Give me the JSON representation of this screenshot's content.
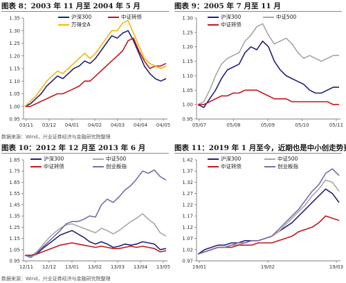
{
  "source_top": "数据来源：Wind，兴业证券经济与金融研究院整理",
  "source_bottom": "数据来源：Wind，兴业证券经济与金融研究院整理",
  "panels": [
    {
      "title": "图表 8：2003 年 11 月至 2004 年 5 月"
    },
    {
      "title": "图表 9：2005 年 7 月至 11 月"
    },
    {
      "title": "图表 10：2012 年 12 月至 2013 年 6 月"
    },
    {
      "title": "图表 11：2019 年 1 月至今，近期也是中小创走势更强"
    }
  ],
  "chart_data": [
    {
      "type": "line",
      "title": "图表 8：2003 年 11 月至 2004 年 5 月",
      "x_ticks": [
        "03/11",
        "03/12",
        "04/01",
        "04/02",
        "04/03",
        "04/04",
        "04/05"
      ],
      "ylim": [
        0.95,
        1.35
      ],
      "y_ticks": [
        "0.95",
        "1.00",
        "1.05",
        "1.10",
        "1.15",
        "1.20",
        "1.25",
        "1.30",
        "1.35"
      ],
      "legend_position": "top",
      "series": [
        {
          "name": "沪深300",
          "color": "#1f1f7a",
          "values": [
            1.0,
            1.01,
            1.03,
            1.05,
            1.08,
            1.1,
            1.12,
            1.11,
            1.13,
            1.15,
            1.16,
            1.18,
            1.17,
            1.19,
            1.22,
            1.25,
            1.28,
            1.27,
            1.29,
            1.3,
            1.26,
            1.21,
            1.16,
            1.13,
            1.11,
            1.1,
            1.11
          ]
        },
        {
          "name": "中证转债",
          "color": "#c0161c",
          "values": [
            1.0,
            1.0,
            1.01,
            1.02,
            1.03,
            1.04,
            1.05,
            1.05,
            1.06,
            1.07,
            1.08,
            1.1,
            1.1,
            1.12,
            1.14,
            1.16,
            1.18,
            1.2,
            1.22,
            1.26,
            1.27,
            1.22,
            1.18,
            1.15,
            1.16,
            1.16,
            1.17
          ]
        },
        {
          "name": "万得全A",
          "color": "#f2b705",
          "values": [
            1.0,
            1.02,
            1.04,
            1.07,
            1.1,
            1.12,
            1.14,
            1.13,
            1.15,
            1.17,
            1.19,
            1.21,
            1.19,
            1.21,
            1.24,
            1.27,
            1.3,
            1.3,
            1.33,
            1.34,
            1.29,
            1.24,
            1.19,
            1.17,
            1.16,
            1.15,
            1.16
          ]
        }
      ]
    },
    {
      "type": "line",
      "title": "图表 9：2005 年 7 月至 11 月",
      "x_ticks": [
        "05/07",
        "05/08",
        "05/09",
        "05/10",
        "05/11"
      ],
      "ylim": [
        0.95,
        1.3
      ],
      "y_ticks": [
        "0.95",
        "1.00",
        "1.05",
        "1.10",
        "1.15",
        "1.20",
        "1.25",
        "1.30"
      ],
      "legend_position": "top",
      "series": [
        {
          "name": "沪深300",
          "color": "#1f1f7a",
          "values": [
            1.0,
            0.99,
            1.02,
            1.05,
            1.09,
            1.12,
            1.13,
            1.14,
            1.18,
            1.2,
            1.19,
            1.22,
            1.2,
            1.15,
            1.12,
            1.1,
            1.09,
            1.08,
            1.07,
            1.05,
            1.04,
            1.04,
            1.05,
            1.06,
            1.06
          ]
        },
        {
          "name": "中证500",
          "color": "#a6a6a6",
          "values": [
            1.0,
            1.01,
            1.05,
            1.1,
            1.14,
            1.16,
            1.17,
            1.18,
            1.22,
            1.24,
            1.27,
            1.28,
            1.24,
            1.21,
            1.22,
            1.23,
            1.21,
            1.18,
            1.16,
            1.17,
            1.16,
            1.15,
            1.16,
            1.17,
            1.17
          ]
        },
        {
          "name": "中证转债",
          "color": "#c0161c",
          "values": [
            1.0,
            1.0,
            1.01,
            1.02,
            1.03,
            1.03,
            1.04,
            1.04,
            1.05,
            1.05,
            1.05,
            1.04,
            1.03,
            1.02,
            1.02,
            1.02,
            1.01,
            1.01,
            1.01,
            1.01,
            1.01,
            1.01,
            1.01,
            1.0,
            1.0
          ]
        }
      ]
    },
    {
      "type": "line",
      "title": "图表 10：2012 年 12 月至 2013 年 6 月",
      "x_ticks": [
        "12/11",
        "12/12",
        "13/01",
        "13/02",
        "13/03",
        "13/04",
        "13/05"
      ],
      "ylim": [
        0.95,
        1.85
      ],
      "y_ticks": [
        "0.95",
        "1.05",
        "1.15",
        "1.25",
        "1.35",
        "1.45",
        "1.55",
        "1.65",
        "1.75",
        "1.85"
      ],
      "legend_position": "top",
      "series": [
        {
          "name": "沪深300",
          "color": "#1f1f7a",
          "values": [
            1.0,
            0.99,
            1.01,
            1.06,
            1.1,
            1.14,
            1.18,
            1.2,
            1.22,
            1.19,
            1.16,
            1.12,
            1.1,
            1.12,
            1.1,
            1.07,
            1.08,
            1.1,
            1.09,
            1.1,
            1.12,
            1.11,
            1.1,
            1.05,
            1.06
          ]
        },
        {
          "name": "中证500",
          "color": "#a6a6a6",
          "values": [
            1.0,
            0.99,
            1.03,
            1.09,
            1.15,
            1.2,
            1.24,
            1.27,
            1.28,
            1.26,
            1.24,
            1.22,
            1.2,
            1.24,
            1.22,
            1.19,
            1.22,
            1.26,
            1.3,
            1.33,
            1.37,
            1.32,
            1.28,
            1.2,
            1.17
          ]
        },
        {
          "name": "中证转债",
          "color": "#c0161c",
          "values": [
            1.0,
            1.0,
            1.01,
            1.03,
            1.05,
            1.07,
            1.09,
            1.1,
            1.11,
            1.1,
            1.09,
            1.08,
            1.07,
            1.08,
            1.07,
            1.06,
            1.06,
            1.07,
            1.08,
            1.07,
            1.08,
            1.07,
            1.06,
            1.03,
            1.04
          ]
        },
        {
          "name": "创业板指",
          "color": "#7b6aa8",
          "values": [
            1.0,
            0.98,
            1.02,
            1.07,
            1.12,
            1.17,
            1.22,
            1.28,
            1.3,
            1.3,
            1.32,
            1.35,
            1.34,
            1.45,
            1.5,
            1.47,
            1.52,
            1.58,
            1.62,
            1.68,
            1.75,
            1.73,
            1.76,
            1.7,
            1.67
          ]
        }
      ]
    },
    {
      "type": "line",
      "title": "图表 11：2019 年 1 月至今，近期也是中小创走势更强",
      "x_ticks": [
        "19/01",
        "19/02",
        "19/03"
      ],
      "ylim": [
        0.97,
        1.42
      ],
      "y_ticks": [
        "0.97",
        "1.02",
        "1.07",
        "1.12",
        "1.17",
        "1.22",
        "1.27",
        "1.32",
        "1.37",
        "1.42"
      ],
      "legend_position": "top",
      "series": [
        {
          "name": "沪深300",
          "color": "#1f1f7a",
          "values": [
            1.0,
            1.02,
            1.03,
            1.04,
            1.04,
            1.05,
            1.05,
            1.06,
            1.06,
            1.06,
            1.07,
            1.08,
            1.1,
            1.12,
            1.14,
            1.17,
            1.2,
            1.23,
            1.26,
            1.29,
            1.27,
            1.23
          ]
        },
        {
          "name": "中证500",
          "color": "#a6a6a6",
          "values": [
            1.0,
            1.01,
            1.02,
            1.03,
            1.03,
            1.04,
            1.04,
            1.05,
            1.06,
            1.06,
            1.07,
            1.08,
            1.1,
            1.13,
            1.16,
            1.19,
            1.22,
            1.26,
            1.29,
            1.33,
            1.32,
            1.28
          ]
        },
        {
          "name": "中证转债",
          "color": "#c0161c",
          "values": [
            1.0,
            1.01,
            1.02,
            1.03,
            1.03,
            1.03,
            1.04,
            1.04,
            1.04,
            1.05,
            1.05,
            1.05,
            1.06,
            1.07,
            1.08,
            1.1,
            1.11,
            1.12,
            1.14,
            1.17,
            1.16,
            1.15
          ]
        },
        {
          "name": "创业板指",
          "color": "#7b6aa8",
          "values": [
            1.0,
            1.01,
            1.02,
            1.03,
            1.03,
            1.04,
            1.05,
            1.05,
            1.06,
            1.06,
            1.07,
            1.08,
            1.11,
            1.14,
            1.17,
            1.2,
            1.24,
            1.28,
            1.31,
            1.36,
            1.38,
            1.35
          ]
        }
      ]
    }
  ]
}
